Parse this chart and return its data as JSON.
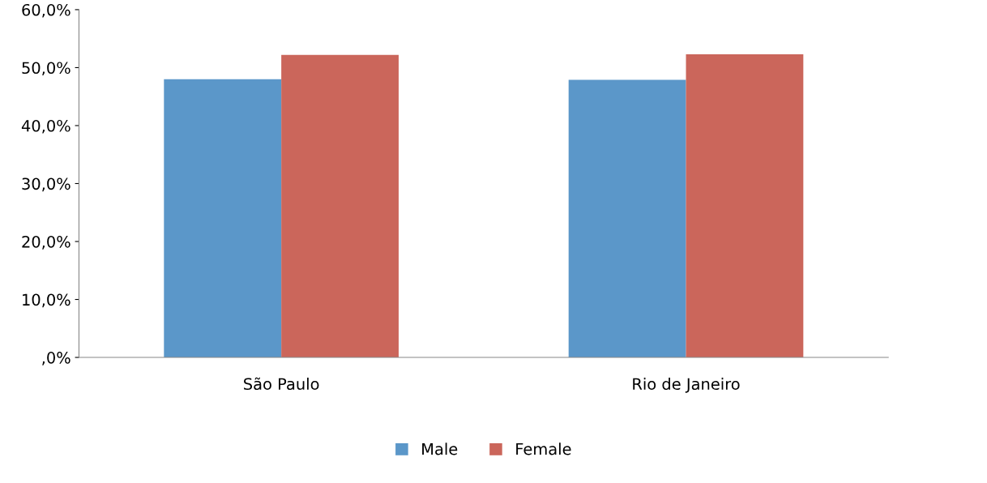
{
  "chart_data": {
    "type": "bar",
    "categories": [
      "São Paulo",
      "Rio de Janeiro"
    ],
    "series": [
      {
        "name": "Male",
        "color": "#5b97c9",
        "values": [
          48,
          47.9
        ]
      },
      {
        "name": "Female",
        "color": "#cb665b",
        "values": [
          52.2,
          52.3
        ]
      }
    ],
    "ylim": [
      0,
      60
    ],
    "yticks": [
      {
        "value": 0,
        "label": ",0%"
      },
      {
        "value": 10,
        "label": "10,0%"
      },
      {
        "value": 20,
        "label": "20,0%"
      },
      {
        "value": 30,
        "label": "30,0%"
      },
      {
        "value": 40,
        "label": "40,0%"
      },
      {
        "value": 50,
        "label": "50,0%"
      },
      {
        "value": 60,
        "label": "60,0%"
      }
    ],
    "grid": false,
    "legend": "bottom"
  }
}
